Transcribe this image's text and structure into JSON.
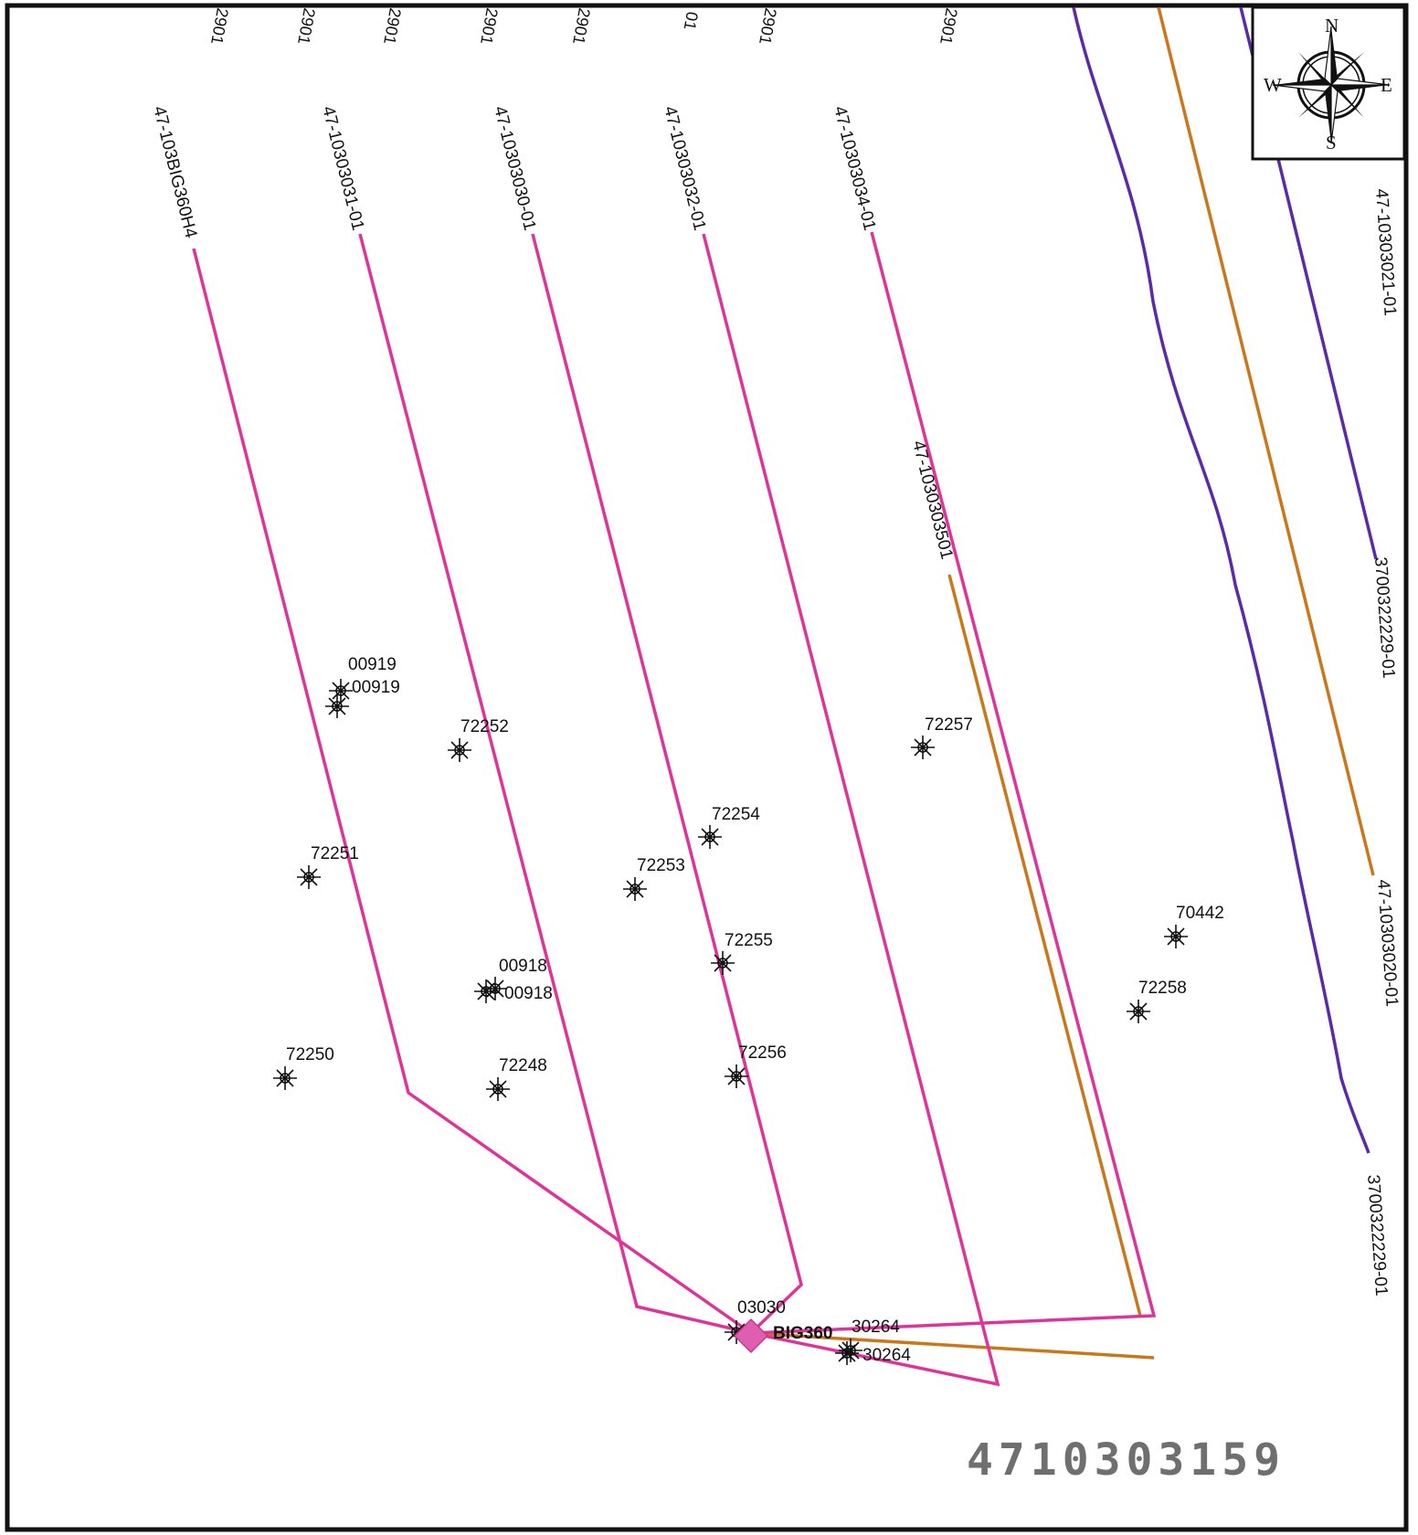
{
  "map": {
    "colors": {
      "lateral": "#e0339a",
      "orange_lateral": "#c9771a",
      "purple_lateral": "#5a2aa8",
      "frame": "#111111",
      "pad": "#e05eb0"
    },
    "top_edge_labels": [
      {
        "id": "top-1",
        "text": "2901"
      },
      {
        "id": "top-2",
        "text": "2901"
      },
      {
        "id": "top-3",
        "text": "2901"
      },
      {
        "id": "top-4",
        "text": "2901"
      },
      {
        "id": "top-5",
        "text": "2901"
      },
      {
        "id": "top-6",
        "text": "01"
      },
      {
        "id": "top-7",
        "text": "2901"
      },
      {
        "id": "top-8",
        "text": "2901"
      }
    ],
    "laterals": [
      {
        "id": "lat-1",
        "label": "47-103BIG360H4"
      },
      {
        "id": "lat-2",
        "label": "47-10303031-01"
      },
      {
        "id": "lat-3",
        "label": "47-10303030-01"
      },
      {
        "id": "lat-4",
        "label": "47-10303032-01"
      },
      {
        "id": "lat-5",
        "label": "47-10303034-01"
      },
      {
        "id": "lat-6",
        "label": "47-1030303501"
      },
      {
        "id": "lat-right-top",
        "label": "47-10303021-01"
      },
      {
        "id": "lat-right-mid",
        "label": "47-10303020-01"
      },
      {
        "id": "lat-purple-1",
        "label": "3700322229-01"
      },
      {
        "id": "lat-purple-2",
        "label": "3700322229-01"
      }
    ],
    "wells": [
      {
        "id": "w-00919a",
        "label": "00919"
      },
      {
        "id": "w-00919b",
        "label": "00919"
      },
      {
        "id": "w-72252",
        "label": "72252"
      },
      {
        "id": "w-72257",
        "label": "72257"
      },
      {
        "id": "w-72254",
        "label": "72254"
      },
      {
        "id": "w-72251",
        "label": "72251"
      },
      {
        "id": "w-72253",
        "label": "72253"
      },
      {
        "id": "w-70442",
        "label": "70442"
      },
      {
        "id": "w-72255",
        "label": "72255"
      },
      {
        "id": "w-00918a",
        "label": "00918"
      },
      {
        "id": "w-00918b",
        "label": "00918"
      },
      {
        "id": "w-72258",
        "label": "72258"
      },
      {
        "id": "w-72250",
        "label": "72250"
      },
      {
        "id": "w-72248",
        "label": "72248"
      },
      {
        "id": "w-72256",
        "label": "72256"
      },
      {
        "id": "w-03030",
        "label": "03030"
      },
      {
        "id": "w-30264a",
        "label": "30264"
      },
      {
        "id": "w-30264b",
        "label": "30264"
      }
    ],
    "pad": {
      "label": "BIG360"
    },
    "compass": {
      "n": "N",
      "s": "S",
      "e": "E",
      "w": "W",
      "icon": "compass-rose-icon"
    },
    "permit_stamp": "4710303159"
  }
}
